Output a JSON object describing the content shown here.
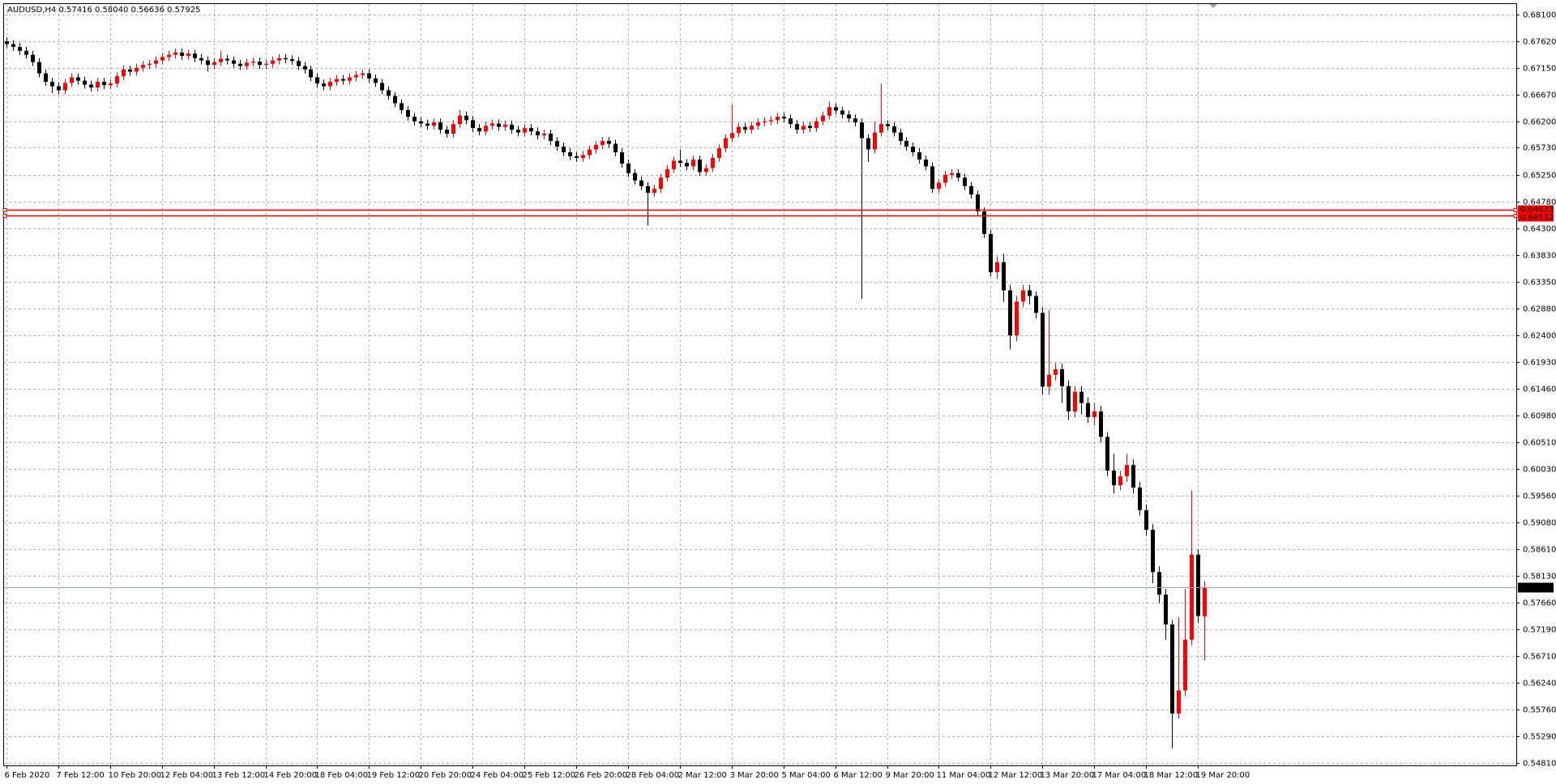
{
  "chart_data": {
    "type": "candlestick",
    "title": "AUDUSD,H4 0.57416 0.58040 0.56636 0.57925",
    "up_color": "#ff0000",
    "down_color": "#000000",
    "grid": true,
    "ylim": [
      0.5477,
      0.6828
    ],
    "yticks": [
      {
        "value": 0.681,
        "label": "0.68100"
      },
      {
        "value": 0.6762,
        "label": "0.67620"
      },
      {
        "value": 0.6715,
        "label": "0.67150"
      },
      {
        "value": 0.6667,
        "label": "0.66670"
      },
      {
        "value": 0.662,
        "label": "0.66200"
      },
      {
        "value": 0.6573,
        "label": "0.65730"
      },
      {
        "value": 0.6525,
        "label": "0.65250"
      },
      {
        "value": 0.6478,
        "label": "0.64780"
      },
      {
        "value": 0.643,
        "label": "0.64300"
      },
      {
        "value": 0.6383,
        "label": "0.63830"
      },
      {
        "value": 0.6335,
        "label": "0.63350"
      },
      {
        "value": 0.6288,
        "label": "0.62880"
      },
      {
        "value": 0.624,
        "label": "0.62400"
      },
      {
        "value": 0.6193,
        "label": "0.61930"
      },
      {
        "value": 0.6146,
        "label": "0.61460"
      },
      {
        "value": 0.6098,
        "label": "0.60980"
      },
      {
        "value": 0.6051,
        "label": "0.60510"
      },
      {
        "value": 0.6003,
        "label": "0.60030"
      },
      {
        "value": 0.5956,
        "label": "0.59560"
      },
      {
        "value": 0.5908,
        "label": "0.59080"
      },
      {
        "value": 0.5861,
        "label": "0.58610"
      },
      {
        "value": 0.5813,
        "label": "0.58130"
      },
      {
        "value": 0.5766,
        "label": "0.57660"
      },
      {
        "value": 0.5719,
        "label": "0.57190"
      },
      {
        "value": 0.5671,
        "label": "0.56710"
      },
      {
        "value": 0.5624,
        "label": "0.56240"
      },
      {
        "value": 0.5576,
        "label": "0.55760"
      },
      {
        "value": 0.5529,
        "label": "0.55290"
      },
      {
        "value": 0.5481,
        "label": "0.54810"
      }
    ],
    "levels": [
      {
        "value": 0.64633,
        "label": "0.64633",
        "color": "#ff0000"
      },
      {
        "value": 0.64532,
        "label": "0.64532",
        "color": "#ff0000"
      }
    ],
    "last_price": {
      "value": 0.57925,
      "label": "0.57925",
      "color": "#8fa3c7"
    },
    "categories": [
      "6 Feb 2020",
      null,
      null,
      null,
      null,
      null,
      null,
      null,
      "7 Feb 12:00",
      null,
      null,
      null,
      null,
      null,
      null,
      null,
      "10 Feb 20:00",
      null,
      null,
      null,
      null,
      null,
      null,
      null,
      "12 Feb 04:00",
      null,
      null,
      null,
      null,
      null,
      null,
      null,
      "13 Feb 12:00",
      null,
      null,
      null,
      null,
      null,
      null,
      null,
      "14 Feb 20:00",
      null,
      null,
      null,
      null,
      null,
      null,
      null,
      "18 Feb 04:00",
      null,
      null,
      null,
      null,
      null,
      null,
      null,
      "19 Feb 12:00",
      null,
      null,
      null,
      null,
      null,
      null,
      null,
      "20 Feb 20:00",
      null,
      null,
      null,
      null,
      null,
      null,
      null,
      "24 Feb 04:00",
      null,
      null,
      null,
      null,
      null,
      null,
      null,
      "25 Feb 12:00",
      null,
      null,
      null,
      null,
      null,
      null,
      null,
      "26 Feb 20:00",
      null,
      null,
      null,
      null,
      null,
      null,
      null,
      "28 Feb 04:00",
      null,
      null,
      null,
      null,
      null,
      null,
      null,
      "2 Mar 12:00",
      null,
      null,
      null,
      null,
      null,
      null,
      null,
      "3 Mar 20:00",
      null,
      null,
      null,
      null,
      null,
      null,
      null,
      "5 Mar 04:00",
      null,
      null,
      null,
      null,
      null,
      null,
      null,
      "6 Mar 12:00",
      null,
      null,
      null,
      null,
      null,
      null,
      null,
      "9 Mar 20:00",
      null,
      null,
      null,
      null,
      null,
      null,
      null,
      "11 Mar 04:00",
      null,
      null,
      null,
      null,
      null,
      null,
      null,
      "12 Mar 12:00",
      null,
      null,
      null,
      null,
      null,
      null,
      null,
      "13 Mar 20:00",
      null,
      null,
      null,
      null,
      null,
      null,
      null,
      "17 Mar 04:00",
      null,
      null,
      null,
      null,
      null,
      null,
      null,
      "18 Mar 12:00",
      null,
      null,
      null,
      null,
      null,
      null,
      null,
      "19 Mar 20:00",
      null
    ],
    "open": [
      0.6762,
      0.6757,
      0.6752,
      0.6745,
      0.6738,
      0.6725,
      0.6705,
      0.669,
      0.6682,
      0.6675,
      0.6688,
      0.6698,
      0.6692,
      0.6685,
      0.668,
      0.669,
      0.6684,
      0.6687,
      0.67,
      0.6712,
      0.6708,
      0.6715,
      0.672,
      0.6722,
      0.6728,
      0.6734,
      0.6738,
      0.6742,
      0.6736,
      0.674,
      0.6732,
      0.6728,
      0.672,
      0.6725,
      0.6731,
      0.6728,
      0.6722,
      0.6718,
      0.6724,
      0.6726,
      0.672,
      0.6722,
      0.6728,
      0.6732,
      0.673,
      0.6727,
      0.6718,
      0.6712,
      0.6698,
      0.6687,
      0.6682,
      0.669,
      0.6695,
      0.6692,
      0.6698,
      0.6702,
      0.6705,
      0.6696,
      0.6688,
      0.6675,
      0.6665,
      0.6652,
      0.664,
      0.6628,
      0.662,
      0.6616,
      0.6612,
      0.6618,
      0.6605,
      0.6598,
      0.6615,
      0.663,
      0.6622,
      0.6608,
      0.6602,
      0.6612,
      0.6616,
      0.661,
      0.6614,
      0.6605,
      0.66,
      0.6608,
      0.6602,
      0.6595,
      0.6598,
      0.6585,
      0.6575,
      0.6565,
      0.6558,
      0.6555,
      0.656,
      0.657,
      0.6578,
      0.6585,
      0.658,
      0.6565,
      0.6545,
      0.6528,
      0.6515,
      0.6505,
      0.6493,
      0.65,
      0.652,
      0.6535,
      0.655,
      0.6546,
      0.654,
      0.6552,
      0.653,
      0.6537,
      0.6555,
      0.6572,
      0.659,
      0.6599,
      0.661,
      0.6605,
      0.6612,
      0.6618,
      0.662,
      0.6622,
      0.6628,
      0.6625,
      0.6615,
      0.6605,
      0.6612,
      0.6608,
      0.662,
      0.663,
      0.6645,
      0.6639,
      0.6632,
      0.6625,
      0.6618,
      0.659,
      0.657,
      0.66,
      0.6615,
      0.6611,
      0.66,
      0.6585,
      0.6575,
      0.6565,
      0.6552,
      0.654,
      0.65,
      0.6511,
      0.6525,
      0.6528,
      0.652,
      0.6505,
      0.649,
      0.646,
      0.642,
      0.6352,
      0.637,
      0.632,
      0.624,
      0.63,
      0.632,
      0.631,
      0.628,
      0.6149,
      0.617,
      0.618,
      0.615,
      0.6105,
      0.614,
      0.612,
      0.6095,
      0.6105,
      0.606,
      0.6,
      0.5974,
      0.599,
      0.601,
      0.597,
      0.593,
      0.5895,
      0.582,
      0.578,
      0.5727,
      0.5569,
      0.561,
      0.57,
      0.5851,
      0.57416
    ],
    "high": [
      0.6769,
      0.6764,
      0.6759,
      0.6752,
      0.6745,
      0.6732,
      0.6712,
      0.6697,
      0.6689,
      0.6695,
      0.6705,
      0.6705,
      0.6699,
      0.6692,
      0.6697,
      0.6697,
      0.6694,
      0.6707,
      0.6719,
      0.6719,
      0.6722,
      0.6727,
      0.6729,
      0.6735,
      0.6741,
      0.6745,
      0.6749,
      0.6749,
      0.6747,
      0.6747,
      0.6739,
      0.6735,
      0.6732,
      0.6745,
      0.6738,
      0.6735,
      0.6729,
      0.6731,
      0.6733,
      0.6733,
      0.6729,
      0.6735,
      0.6739,
      0.6739,
      0.6737,
      0.6734,
      0.6725,
      0.6719,
      0.6705,
      0.6694,
      0.6697,
      0.6702,
      0.6702,
      0.6705,
      0.6709,
      0.6712,
      0.6712,
      0.6703,
      0.6695,
      0.6682,
      0.6672,
      0.6659,
      0.6647,
      0.6635,
      0.6627,
      0.6623,
      0.6625,
      0.6625,
      0.6612,
      0.6622,
      0.664,
      0.6637,
      0.6629,
      0.6615,
      0.6619,
      0.6623,
      0.6623,
      0.6621,
      0.6621,
      0.6612,
      0.6615,
      0.6615,
      0.6609,
      0.6605,
      0.6605,
      0.6592,
      0.6582,
      0.6572,
      0.6565,
      0.6567,
      0.6577,
      0.6585,
      0.6592,
      0.6592,
      0.6587,
      0.6572,
      0.6552,
      0.6535,
      0.6522,
      0.6512,
      0.6507,
      0.6527,
      0.6542,
      0.6557,
      0.657,
      0.6553,
      0.6559,
      0.6559,
      0.6544,
      0.6562,
      0.6579,
      0.6597,
      0.665,
      0.6617,
      0.6617,
      0.6619,
      0.6625,
      0.6627,
      0.6629,
      0.6635,
      0.6635,
      0.6632,
      0.6622,
      0.6619,
      0.6619,
      0.6627,
      0.6637,
      0.6655,
      0.6652,
      0.6646,
      0.6639,
      0.6632,
      0.6625,
      0.6597,
      0.662,
      0.6687,
      0.6622,
      0.6618,
      0.6607,
      0.6592,
      0.6582,
      0.6572,
      0.6559,
      0.6547,
      0.6518,
      0.6532,
      0.6535,
      0.6535,
      0.6527,
      0.6512,
      0.6497,
      0.6467,
      0.6427,
      0.638,
      0.6385,
      0.633,
      0.631,
      0.633,
      0.633,
      0.6318,
      0.629,
      0.6285,
      0.619,
      0.619,
      0.616,
      0.615,
      0.615,
      0.613,
      0.612,
      0.6115,
      0.6068,
      0.603,
      0.6,
      0.603,
      0.602,
      0.598,
      0.594,
      0.5905,
      0.583,
      0.579,
      0.5735,
      0.574,
      0.579,
      0.5965,
      0.586,
      0.5804
    ],
    "low": [
      0.675,
      0.6745,
      0.6738,
      0.6731,
      0.6718,
      0.6698,
      0.6683,
      0.667,
      0.6668,
      0.6668,
      0.6681,
      0.6685,
      0.6678,
      0.6673,
      0.6673,
      0.6677,
      0.6677,
      0.668,
      0.6693,
      0.6701,
      0.6701,
      0.6708,
      0.6713,
      0.6715,
      0.6721,
      0.6727,
      0.6731,
      0.6729,
      0.6729,
      0.6725,
      0.6721,
      0.6708,
      0.6713,
      0.6718,
      0.6721,
      0.6715,
      0.6711,
      0.6711,
      0.6717,
      0.6713,
      0.6713,
      0.6715,
      0.6721,
      0.6723,
      0.672,
      0.6711,
      0.6705,
      0.6691,
      0.668,
      0.6675,
      0.6675,
      0.6683,
      0.6685,
      0.6685,
      0.6691,
      0.6695,
      0.6689,
      0.6681,
      0.6668,
      0.6658,
      0.6645,
      0.6633,
      0.6621,
      0.6613,
      0.6609,
      0.6605,
      0.6605,
      0.6598,
      0.6591,
      0.6591,
      0.6608,
      0.6615,
      0.6601,
      0.6595,
      0.6595,
      0.6605,
      0.6603,
      0.6603,
      0.6598,
      0.6593,
      0.6593,
      0.6595,
      0.6588,
      0.6588,
      0.6578,
      0.6568,
      0.6558,
      0.6551,
      0.6548,
      0.6548,
      0.6553,
      0.6563,
      0.6571,
      0.6573,
      0.6558,
      0.6538,
      0.6521,
      0.6508,
      0.6498,
      0.6435,
      0.6486,
      0.6493,
      0.6513,
      0.6528,
      0.6539,
      0.6533,
      0.6533,
      0.6523,
      0.6523,
      0.653,
      0.6548,
      0.6565,
      0.6583,
      0.6592,
      0.6598,
      0.6598,
      0.6605,
      0.6611,
      0.6613,
      0.6615,
      0.6618,
      0.6608,
      0.6598,
      0.6598,
      0.6601,
      0.6601,
      0.6613,
      0.6623,
      0.6632,
      0.6625,
      0.6618,
      0.6611,
      0.6305,
      0.6548,
      0.6563,
      0.6593,
      0.6604,
      0.6593,
      0.6578,
      0.6568,
      0.6558,
      0.6545,
      0.6533,
      0.6493,
      0.6493,
      0.6504,
      0.6518,
      0.6513,
      0.6498,
      0.6483,
      0.6453,
      0.6413,
      0.6345,
      0.634,
      0.63,
      0.6215,
      0.623,
      0.629,
      0.6295,
      0.627,
      0.6135,
      0.6135,
      0.616,
      0.612,
      0.609,
      0.6095,
      0.61,
      0.6085,
      0.608,
      0.605,
      0.599,
      0.596,
      0.5965,
      0.598,
      0.596,
      0.592,
      0.5885,
      0.58,
      0.5765,
      0.57,
      0.5507,
      0.556,
      0.56,
      0.569,
      0.573,
      0.56636
    ],
    "close": [
      0.6757,
      0.6752,
      0.6745,
      0.6738,
      0.6725,
      0.6705,
      0.669,
      0.6682,
      0.6675,
      0.6688,
      0.6698,
      0.6692,
      0.6685,
      0.668,
      0.669,
      0.6684,
      0.6687,
      0.67,
      0.6712,
      0.6708,
      0.6715,
      0.672,
      0.6722,
      0.6728,
      0.6734,
      0.6738,
      0.6742,
      0.6736,
      0.674,
      0.6732,
      0.6728,
      0.672,
      0.6725,
      0.6731,
      0.6728,
      0.6722,
      0.6718,
      0.6724,
      0.6726,
      0.672,
      0.6722,
      0.6728,
      0.6732,
      0.673,
      0.6727,
      0.6718,
      0.6712,
      0.6698,
      0.6687,
      0.6682,
      0.669,
      0.6695,
      0.6692,
      0.6698,
      0.6702,
      0.6705,
      0.6696,
      0.6688,
      0.6675,
      0.6665,
      0.6652,
      0.664,
      0.6628,
      0.662,
      0.6616,
      0.6612,
      0.6618,
      0.6605,
      0.6598,
      0.6615,
      0.663,
      0.6622,
      0.6608,
      0.6602,
      0.6612,
      0.6616,
      0.661,
      0.6614,
      0.6605,
      0.66,
      0.6608,
      0.6602,
      0.6595,
      0.6598,
      0.6585,
      0.6575,
      0.6565,
      0.6558,
      0.6555,
      0.656,
      0.657,
      0.6578,
      0.6585,
      0.658,
      0.6565,
      0.6545,
      0.6528,
      0.6515,
      0.6505,
      0.6493,
      0.65,
      0.652,
      0.6535,
      0.655,
      0.6546,
      0.654,
      0.6552,
      0.653,
      0.6537,
      0.6555,
      0.6572,
      0.659,
      0.6599,
      0.661,
      0.6605,
      0.6612,
      0.6618,
      0.662,
      0.6622,
      0.6628,
      0.6625,
      0.6615,
      0.6605,
      0.6612,
      0.6608,
      0.662,
      0.663,
      0.6645,
      0.6639,
      0.6632,
      0.6625,
      0.6618,
      0.659,
      0.657,
      0.66,
      0.6615,
      0.6611,
      0.66,
      0.6585,
      0.6575,
      0.6565,
      0.6552,
      0.654,
      0.65,
      0.6511,
      0.6525,
      0.6528,
      0.652,
      0.6505,
      0.649,
      0.646,
      0.642,
      0.6352,
      0.637,
      0.632,
      0.624,
      0.63,
      0.632,
      0.631,
      0.628,
      0.6149,
      0.617,
      0.618,
      0.615,
      0.6105,
      0.614,
      0.612,
      0.6095,
      0.6105,
      0.606,
      0.6,
      0.5974,
      0.599,
      0.601,
      0.597,
      0.593,
      0.5895,
      0.582,
      0.578,
      0.5727,
      0.5569,
      0.561,
      0.57,
      0.5851,
      0.5742,
      0.57925
    ]
  }
}
